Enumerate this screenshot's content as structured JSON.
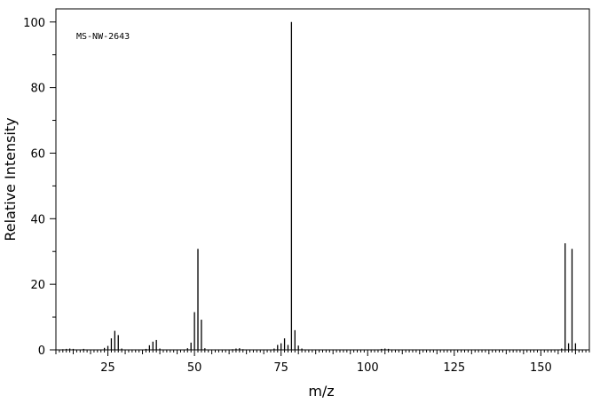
{
  "chart_data": {
    "type": "bar",
    "annotation": "MS-NW-2643",
    "xlabel": "m/z",
    "ylabel": "Relative Intensity",
    "xlim": [
      10,
      164
    ],
    "ylim": [
      0,
      104
    ],
    "x_ticks": [
      25,
      50,
      75,
      100,
      125,
      150
    ],
    "y_ticks": [
      0,
      20,
      40,
      60,
      80,
      100
    ],
    "grid": false,
    "peaks": [
      {
        "mz": 12,
        "intensity": 0.2
      },
      {
        "mz": 13,
        "intensity": 0.3
      },
      {
        "mz": 14,
        "intensity": 0.4
      },
      {
        "mz": 15,
        "intensity": 0.3
      },
      {
        "mz": 18,
        "intensity": 0.3
      },
      {
        "mz": 24,
        "intensity": 0.6
      },
      {
        "mz": 25,
        "intensity": 1.2
      },
      {
        "mz": 26,
        "intensity": 3.5
      },
      {
        "mz": 27,
        "intensity": 5.8
      },
      {
        "mz": 28,
        "intensity": 4.5
      },
      {
        "mz": 29,
        "intensity": 0.4
      },
      {
        "mz": 36,
        "intensity": 0.3
      },
      {
        "mz": 37,
        "intensity": 1.4
      },
      {
        "mz": 38,
        "intensity": 2.5
      },
      {
        "mz": 39,
        "intensity": 3.0
      },
      {
        "mz": 40,
        "intensity": 0.4
      },
      {
        "mz": 48,
        "intensity": 0.5
      },
      {
        "mz": 49,
        "intensity": 2.2
      },
      {
        "mz": 50,
        "intensity": 11.5
      },
      {
        "mz": 51,
        "intensity": 30.8
      },
      {
        "mz": 52,
        "intensity": 9.2
      },
      {
        "mz": 53,
        "intensity": 0.5
      },
      {
        "mz": 61,
        "intensity": 0.2
      },
      {
        "mz": 62,
        "intensity": 0.4
      },
      {
        "mz": 63,
        "intensity": 0.5
      },
      {
        "mz": 64,
        "intensity": 0.2
      },
      {
        "mz": 73,
        "intensity": 0.4
      },
      {
        "mz": 74,
        "intensity": 1.5
      },
      {
        "mz": 75,
        "intensity": 2.0
      },
      {
        "mz": 76,
        "intensity": 3.5
      },
      {
        "mz": 77,
        "intensity": 1.5
      },
      {
        "mz": 78,
        "intensity": 100.0
      },
      {
        "mz": 79,
        "intensity": 6.0
      },
      {
        "mz": 80,
        "intensity": 1.3
      },
      {
        "mz": 81,
        "intensity": 0.4
      },
      {
        "mz": 104,
        "intensity": 0.3
      },
      {
        "mz": 105,
        "intensity": 0.4
      },
      {
        "mz": 106,
        "intensity": 0.3
      },
      {
        "mz": 156,
        "intensity": 0.4
      },
      {
        "mz": 157,
        "intensity": 32.5
      },
      {
        "mz": 158,
        "intensity": 2.0
      },
      {
        "mz": 159,
        "intensity": 30.8
      },
      {
        "mz": 160,
        "intensity": 2.0
      }
    ]
  }
}
